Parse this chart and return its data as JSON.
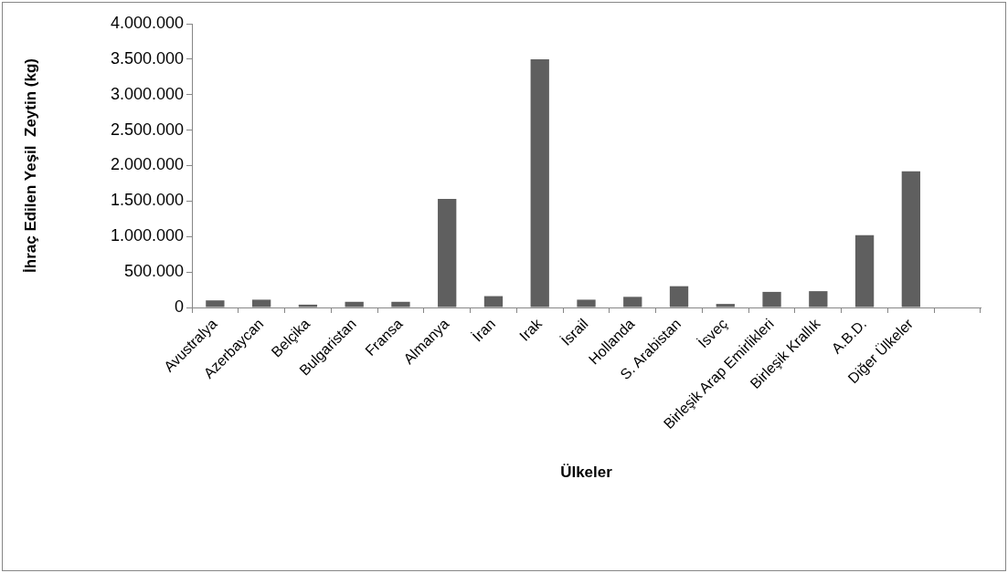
{
  "chart_data": {
    "type": "bar",
    "xlabel": "Ülkeler",
    "ylabel": "İhraç Edilen Yeşil  Zeytin (kg)",
    "categories": [
      "Avustralya",
      "Azerbaycan",
      "Belçika",
      "Bulgaristan",
      "Fransa",
      "Almanya",
      "İran",
      "Irak",
      "İsrail",
      "Hollanda",
      "S. Arabistan",
      "İsveç",
      "Birleşik Arap Emirlikleri",
      "Birleşik Krallık",
      "A.B.D.",
      "Diğer Ülkeler",
      null
    ],
    "values": [
      100000,
      110000,
      40000,
      80000,
      80000,
      1530000,
      160000,
      3500000,
      110000,
      150000,
      300000,
      50000,
      220000,
      230000,
      1020000,
      1920000,
      null
    ],
    "color": "#5f5f5f",
    "ylim": [
      0,
      4000000
    ],
    "yticks": [
      {
        "value": 0,
        "label": "0"
      },
      {
        "value": 500000,
        "label": "500.000"
      },
      {
        "value": 1000000,
        "label": "1.000.000"
      },
      {
        "value": 1500000,
        "label": "1.500.000"
      },
      {
        "value": 2000000,
        "label": "2.000.000"
      },
      {
        "value": 2500000,
        "label": "2.500.000"
      },
      {
        "value": 3000000,
        "label": "3.000.000"
      },
      {
        "value": 3500000,
        "label": "3.500.000"
      },
      {
        "value": 4000000,
        "label": "4.000.000"
      }
    ],
    "grid": false,
    "legend": false
  }
}
